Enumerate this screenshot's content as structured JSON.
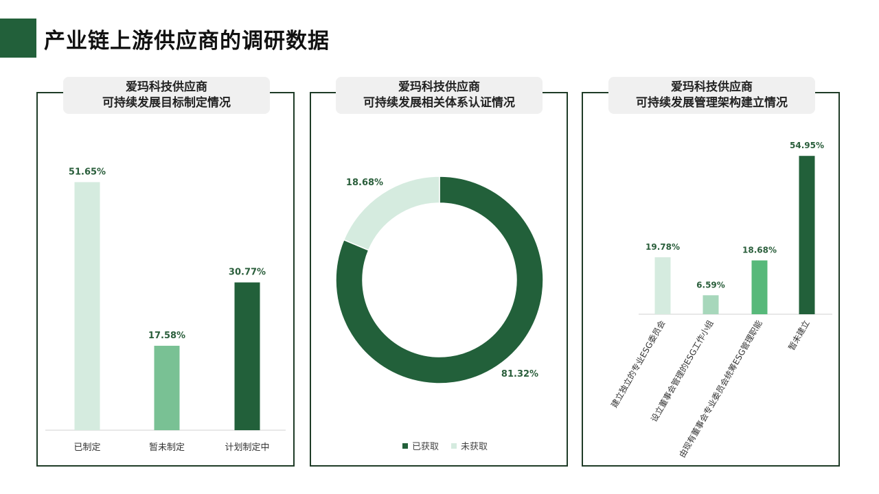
{
  "page": {
    "title": "产业链上游供应商的调研数据"
  },
  "panels": [
    {
      "title_line1": "爱玛科技供应商",
      "title_line2": "可持续发展目标制定情况"
    },
    {
      "title_line1": "爱玛科技供应商",
      "title_line2": "可持续发展相关体系认证情况"
    },
    {
      "title_line1": "爱玛科技供应商",
      "title_line2": "可持续发展管理架构建立情况"
    }
  ],
  "colors": {
    "dark_green": "#22603a",
    "mid_green": "#79c194",
    "bright_green": "#57b97a",
    "pale_green": "#d5ebdf",
    "light_green": "#a7d7bb"
  },
  "chart_data": [
    {
      "type": "bar",
      "title": "爱玛科技供应商 可持续发展目标制定情况",
      "categories": [
        "已制定",
        "暂未制定",
        "计划制定中"
      ],
      "values": [
        51.65,
        17.58,
        30.77
      ],
      "labels": [
        "51.65%",
        "17.58%",
        "30.77%"
      ],
      "colors": [
        "#d5ebdf",
        "#79c194",
        "#22603a"
      ],
      "ylim": [
        0,
        60
      ],
      "grid": false
    },
    {
      "type": "pie",
      "title": "爱玛科技供应商 可持续发展相关体系认证情况",
      "categories": [
        "已获取",
        "未获取"
      ],
      "values": [
        81.32,
        18.68
      ],
      "labels": [
        "81.32%",
        "18.68%"
      ],
      "colors": [
        "#22603a",
        "#d5ebdf"
      ],
      "legend": "bottom"
    },
    {
      "type": "bar",
      "title": "爱玛科技供应商 可持续发展管理架构建立情况",
      "categories": [
        "建立独立的专业ESG委员会",
        "设立董事会管理的ESG工作小组",
        "由现有董事会专业委员会统筹ESG管理职能",
        "暂未建立"
      ],
      "values": [
        19.78,
        6.59,
        18.68,
        54.95
      ],
      "labels": [
        "19.78%",
        "6.59%",
        "18.68%",
        "54.95%"
      ],
      "colors": [
        "#d5ebdf",
        "#a7d7bb",
        "#57b97a",
        "#22603a"
      ],
      "ylim": [
        0,
        60
      ],
      "grid": false
    }
  ]
}
